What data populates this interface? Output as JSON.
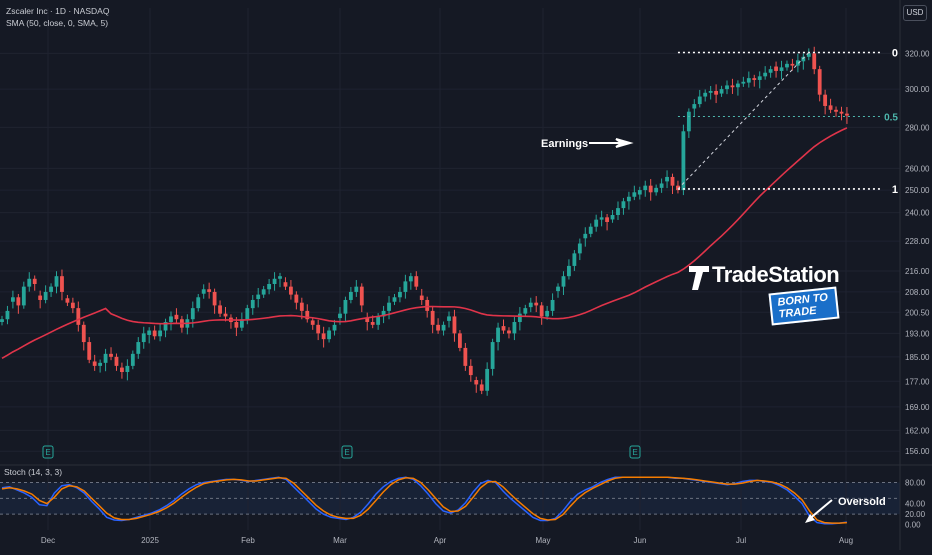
{
  "header": {
    "symbol_line": "Zscaler Inc · 1D · NASDAQ",
    "indicator_line": "SMA (50, close, 0, SMA, 5)",
    "currency": "USD"
  },
  "colors": {
    "background": "#151924",
    "up": "#26a69a",
    "down": "#ef5350",
    "sma": "#e0344a",
    "stoch_k": "#2962ff",
    "stoch_d": "#f57c00",
    "fib": "#ffffff",
    "fib_mid": "#4db6ac",
    "axis_text": "#b2b5be"
  },
  "brand": {
    "name": "TradeStation",
    "tagline": "BORN TO TRADE",
    "logo_icon": "tradestation-logo-icon"
  },
  "annotations": {
    "earnings": "Earnings",
    "oversold": "Oversold",
    "earnings_marker": "E"
  },
  "chart_data": [
    {
      "type": "candlestick",
      "scale": "log",
      "x_tick_labels": [
        "Dec",
        "2025",
        "Feb",
        "Mar",
        "Apr",
        "May",
        "Jun",
        "Jul",
        "Aug"
      ],
      "y_tick_labels": [
        "320.00",
        "300.00",
        "280.00",
        "260.00",
        "250.00",
        "240.00",
        "228.00",
        "216.00",
        "208.00",
        "200.50",
        "193.00",
        "185.00",
        "177.00",
        "169.00",
        "162.00",
        "156.00"
      ],
      "ylim": [
        153,
        335
      ],
      "fib_levels": [
        {
          "label": "0",
          "value": 320.5
        },
        {
          "label": "0.5",
          "value": 285.5
        },
        {
          "label": "1",
          "value": 250.5
        }
      ],
      "earnings_markers": [
        "Dec",
        "Mar",
        "Jun"
      ],
      "series": [
        {
          "name": "SMA (50, close, 0, SMA, 5)",
          "type": "line"
        }
      ],
      "close": [
        198,
        201,
        206,
        203,
        210,
        213,
        211,
        205,
        208,
        210,
        214,
        208,
        204,
        202,
        196,
        190,
        184,
        182,
        183,
        186,
        185,
        182,
        180,
        182,
        186,
        190,
        193,
        194,
        192,
        194,
        197,
        199,
        198,
        195,
        198,
        202,
        206,
        209,
        208,
        203,
        200,
        199,
        197,
        195,
        198,
        202,
        205,
        207,
        209,
        211,
        213,
        214,
        210,
        207,
        204,
        201,
        198,
        196,
        193,
        191,
        194,
        196,
        200,
        205,
        208,
        210,
        203,
        197,
        196,
        199,
        201,
        204,
        206,
        208,
        212,
        214,
        210,
        205,
        201,
        196,
        194,
        196,
        199,
        193,
        188,
        182,
        179,
        176,
        174,
        181,
        190,
        195,
        194,
        193,
        197,
        200,
        202,
        204,
        203,
        199,
        201,
        205,
        210,
        214,
        218,
        223,
        227,
        231,
        234,
        237,
        238,
        236,
        239,
        242,
        245,
        247,
        249,
        250,
        252,
        249,
        251,
        253,
        256,
        252,
        250,
        278,
        288,
        292,
        296,
        298,
        299,
        297,
        300,
        302,
        301,
        303,
        304,
        306,
        305,
        307,
        309,
        311,
        310,
        312,
        314,
        313,
        316,
        318,
        320,
        311,
        297,
        291,
        289,
        288,
        287,
        286
      ]
    },
    {
      "type": "line",
      "title": "Stoch (14, 3, 3)",
      "ylim": [
        -10,
        100
      ],
      "y_tick_labels": [
        "80.00",
        "40.00",
        "20.00",
        "0.00"
      ],
      "overbought": 80,
      "oversold": 20,
      "series": [
        {
          "name": "%K",
          "values": [
            70,
            72,
            66,
            60,
            52,
            38,
            36,
            60,
            74,
            76,
            70,
            60,
            44,
            30,
            14,
            9,
            8,
            10,
            14,
            18,
            22,
            28,
            36,
            46,
            58,
            68,
            76,
            80,
            82,
            84,
            86,
            86,
            84,
            82,
            84,
            86,
            88,
            90,
            86,
            72,
            58,
            44,
            30,
            20,
            14,
            12,
            10,
            14,
            24,
            40,
            58,
            72,
            82,
            88,
            90,
            86,
            74,
            58,
            40,
            26,
            22,
            28,
            42,
            62,
            78,
            84,
            80,
            64,
            50,
            38,
            26,
            14,
            8,
            8,
            12,
            26,
            44,
            58,
            66,
            72,
            80,
            86,
            90,
            90,
            90,
            90,
            90,
            90,
            90,
            90,
            88,
            88,
            86,
            84,
            82,
            80,
            78,
            76,
            78,
            82,
            84,
            84,
            82,
            80,
            74,
            66,
            54,
            40,
            16,
            4,
            2,
            2,
            3,
            5
          ]
        },
        {
          "name": "%D",
          "values": [
            68,
            70,
            68,
            64,
            58,
            46,
            40,
            52,
            68,
            74,
            72,
            64,
            50,
            36,
            22,
            13,
            10,
            10,
            12,
            16,
            20,
            25,
            32,
            41,
            52,
            62,
            71,
            78,
            81,
            83,
            85,
            86,
            85,
            83,
            83,
            85,
            87,
            89,
            88,
            79,
            65,
            51,
            37,
            26,
            18,
            14,
            12,
            12,
            18,
            30,
            46,
            62,
            76,
            85,
            89,
            88,
            80,
            66,
            50,
            34,
            25,
            26,
            35,
            52,
            70,
            81,
            82,
            72,
            58,
            45,
            33,
            21,
            12,
            9,
            10,
            19,
            35,
            50,
            61,
            69,
            76,
            83,
            88,
            90,
            90,
            90,
            90,
            90,
            90,
            90,
            89,
            88,
            87,
            85,
            83,
            81,
            79,
            77,
            77,
            79,
            82,
            84,
            83,
            81,
            77,
            70,
            60,
            47,
            26,
            9,
            4,
            3,
            3,
            4
          ]
        }
      ]
    }
  ]
}
